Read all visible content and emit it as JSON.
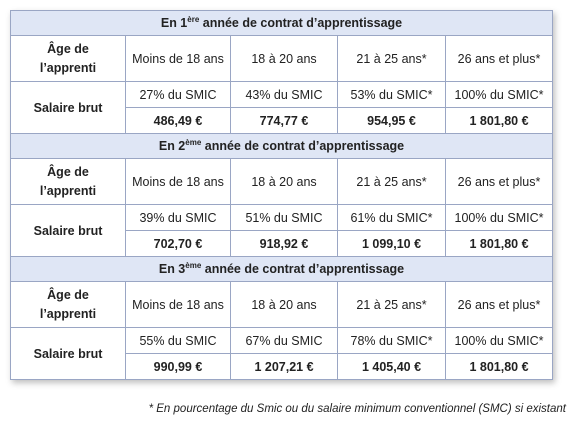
{
  "sections": [
    {
      "heading": {
        "prefix": "En 1",
        "sup": "ère",
        "suffix": " année de contrat d’apprentissage"
      },
      "age_label": "Âge de l’apprenti",
      "age_groups": [
        "Moins de 18 ans",
        "18 à 20 ans",
        "21 à 25 ans*",
        "26 ans et plus*"
      ],
      "salary_label": "Salaire brut",
      "percentages": [
        "27% du SMIC",
        "43% du SMIC",
        "53% du SMIC*",
        "100% du SMIC*"
      ],
      "amounts": [
        "486,49 €",
        "774,77 €",
        "954,95 €",
        "1 801,80 €"
      ]
    },
    {
      "heading": {
        "prefix": "En 2",
        "sup": "ème",
        "suffix": " année de contrat d’apprentissage"
      },
      "age_label": "Âge de l’apprenti",
      "age_groups": [
        "Moins de 18 ans",
        "18 à 20 ans",
        "21 à 25 ans*",
        "26 ans et plus*"
      ],
      "salary_label": "Salaire brut",
      "percentages": [
        "39% du SMIC",
        "51% du SMIC",
        "61% du SMIC*",
        "100% du SMIC*"
      ],
      "amounts": [
        "702,70 €",
        "918,92 €",
        "1 099,10 €",
        "1 801,80 €"
      ]
    },
    {
      "heading": {
        "prefix": "En 3",
        "sup": "ème",
        "suffix": " année de contrat d’apprentissage"
      },
      "age_label": "Âge de l’apprenti",
      "age_groups": [
        "Moins de 18 ans",
        "18 à 20 ans",
        "21 à 25 ans*",
        "26 ans et plus*"
      ],
      "salary_label": "Salaire brut",
      "percentages": [
        "55% du SMIC",
        "67% du SMIC",
        "78% du SMIC*",
        "100% du SMIC*"
      ],
      "amounts": [
        "990,99 €",
        "1 207,21 €",
        "1 405,40 €",
        "1 801,80 €"
      ]
    }
  ],
  "footnote": "* En pourcentage du Smic ou du salaire minimum conventionnel (SMC) si existant"
}
